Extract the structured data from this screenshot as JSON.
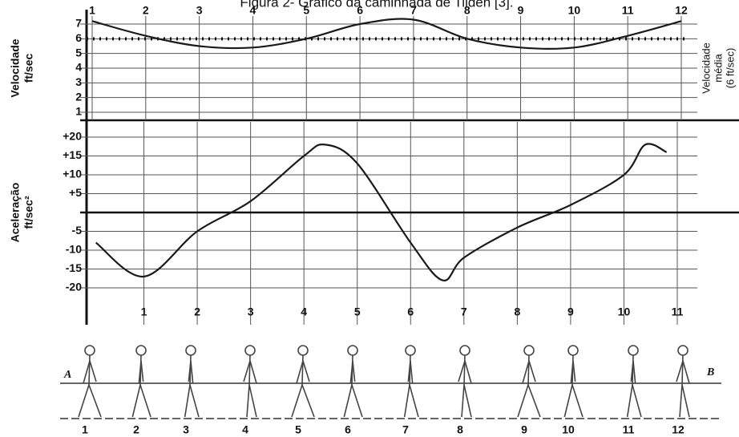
{
  "title": "Figura 2- Gráfico da caminhada de Tilden [3].",
  "chart_data": [
    {
      "type": "line",
      "y_label_lines": [
        "Velocidade",
        "ft/sec"
      ],
      "right_label_lines": [
        "Velocidade",
        "média",
        "(6 ft/sec)"
      ],
      "x": [
        1,
        2,
        3,
        4,
        5,
        6,
        7,
        8,
        9,
        10,
        11,
        12
      ],
      "xlim": [
        1,
        12
      ],
      "xticks": [
        1,
        2,
        3,
        4,
        5,
        6,
        7,
        8,
        9,
        10,
        11,
        12
      ],
      "ylim": [
        1,
        7
      ],
      "yticks": [
        1,
        2,
        3,
        4,
        5,
        6,
        7
      ],
      "series": [
        {
          "color": "#1a1a1a",
          "values": [
            7.2,
            6.2,
            5.5,
            5.4,
            6.0,
            7.0,
            7.3,
            6.0,
            5.4,
            5.4,
            6.2,
            7.2
          ]
        }
      ],
      "mean_line": 6,
      "grid": true
    },
    {
      "type": "line",
      "y_label_lines": [
        "Aceleração",
        "ft/sec²"
      ],
      "x": [
        0.1,
        1,
        2,
        3,
        4,
        4.4,
        5,
        6,
        6.6,
        7,
        8,
        9,
        10,
        10.4,
        10.8
      ],
      "xlim": [
        0,
        11
      ],
      "xticks": [
        1,
        2,
        3,
        4,
        5,
        6,
        7,
        8,
        9,
        10,
        11
      ],
      "ylim": [
        -20,
        20
      ],
      "yticks": [
        {
          "value": 20,
          "label": "+20"
        },
        {
          "value": 15,
          "label": "+15"
        },
        {
          "value": 10,
          "label": "+10"
        },
        {
          "value": 5,
          "label": "+5"
        },
        -5,
        -10,
        -15,
        -20
      ],
      "series": [
        {
          "color": "#1a1a1a",
          "values": [
            -8,
            -17,
            -5,
            3,
            15,
            18,
            13,
            -8,
            -18,
            -12,
            -4,
            2,
            10,
            18,
            16
          ]
        }
      ],
      "grid": true
    }
  ],
  "figures": {
    "labels": [
      1,
      2,
      3,
      4,
      5,
      6,
      7,
      8,
      9,
      10,
      11,
      12
    ],
    "line_labels": [
      "A",
      "B"
    ]
  }
}
